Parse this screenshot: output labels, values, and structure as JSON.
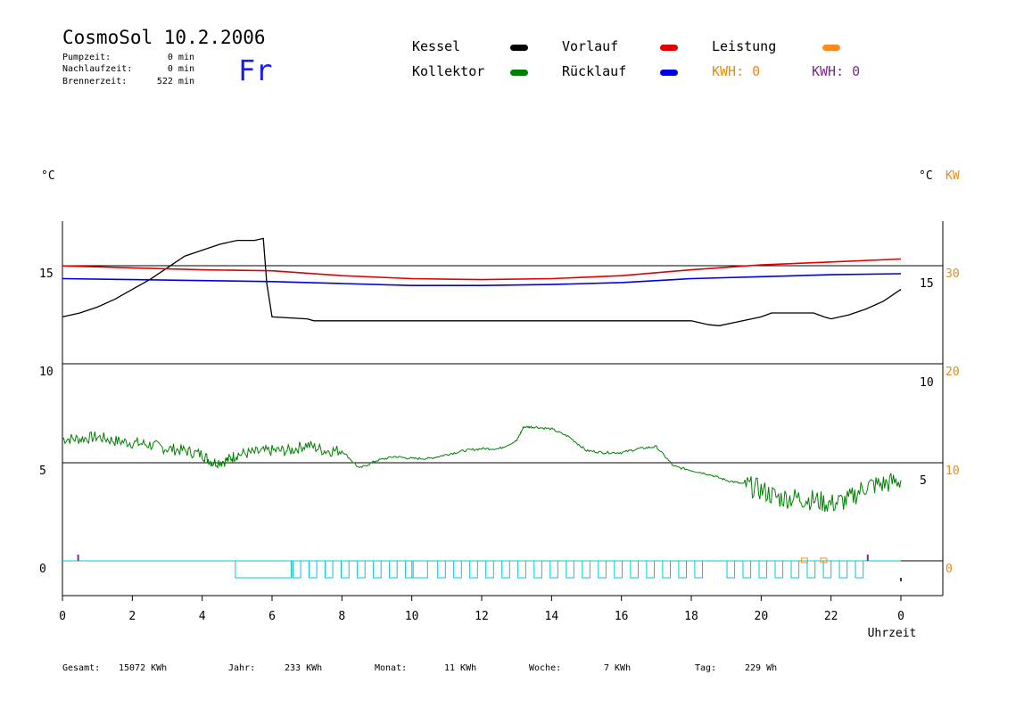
{
  "header": {
    "title": "CosmoSol 10.2.2006",
    "day": "Fr",
    "info": [
      {
        "label": "Pumpzeit:",
        "value": "0 min"
      },
      {
        "label": "Nachlaufzeit:",
        "value": "0 min"
      },
      {
        "label": "Brennerzeit:",
        "value": "522 min"
      }
    ]
  },
  "legend": {
    "kessel": {
      "label": "Kessel",
      "color": "#000000"
    },
    "vorlauf": {
      "label": "Vorlauf",
      "color": "#e00000"
    },
    "leistung": {
      "label": "Leistung",
      "color": "#ff8c1a"
    },
    "kollektor": {
      "label": "Kollektor",
      "color": "#008000"
    },
    "ruecklauf": {
      "label": "Rücklauf",
      "color": "#0000e0"
    },
    "kwh1": "KWH: 0",
    "kwh2": "KWH: 0"
  },
  "footer": {
    "gesamt_label": "Gesamt:",
    "gesamt_value": "15072 KWh",
    "jahr_label": "Jahr:",
    "jahr_value": "233 KWh",
    "monat_label": "Monat:",
    "monat_value": "11 KWh",
    "woche_label": "Woche:",
    "woche_value": "7 KWh",
    "tag_label": "Tag:",
    "tag_value": "229 Wh"
  },
  "chart_data": [
    {
      "type": "line",
      "title": "",
      "xlabel": "Uhrzeit",
      "xlim": [
        0,
        24
      ],
      "xticks": [
        "0",
        "2",
        "4",
        "6",
        "8",
        "10",
        "12",
        "14",
        "16",
        "18",
        "20",
        "22",
        "0"
      ],
      "upper": {
        "ylabel": "°C",
        "ylim": [
          11.5,
          17
        ],
        "yticks_left": [
          "15"
        ],
        "yticks_right": [
          "15"
        ],
        "series": [
          {
            "name": "Kessel",
            "color": "#000000",
            "x": [
              0,
              0.5,
              1,
              1.5,
              2,
              2.5,
              3,
              3.5,
              4,
              4.5,
              5,
              5.5,
              5.75,
              5.85,
              6,
              7,
              7.2,
              8,
              10,
              12,
              14,
              16,
              18,
              18.5,
              18.8,
              19.2,
              20,
              20.3,
              21,
              21.5,
              21.8,
              22,
              22.5,
              23,
              23.5,
              24
            ],
            "y": [
              12.8,
              13.0,
              13.3,
              13.7,
              14.2,
              14.7,
              15.3,
              15.9,
              16.2,
              16.5,
              16.7,
              16.7,
              16.8,
              14.5,
              12.8,
              12.7,
              12.6,
              12.6,
              12.6,
              12.6,
              12.6,
              12.6,
              12.6,
              12.4,
              12.35,
              12.5,
              12.8,
              13.0,
              13.0,
              13.0,
              12.8,
              12.7,
              12.9,
              13.2,
              13.6,
              14.2
            ]
          },
          {
            "name": "Vorlauf",
            "color": "#e00000",
            "x": [
              0,
              2,
              4,
              6,
              8,
              10,
              12,
              14,
              16,
              18,
              20,
              22,
              24
            ],
            "y": [
              15.4,
              15.3,
              15.2,
              15.15,
              14.9,
              14.75,
              14.7,
              14.75,
              14.9,
              15.2,
              15.45,
              15.6,
              15.75
            ]
          },
          {
            "name": "Rücklauf",
            "color": "#0000e0",
            "x": [
              0,
              2,
              4,
              6,
              8,
              10,
              12,
              14,
              16,
              18,
              20,
              22,
              24
            ],
            "y": [
              14.75,
              14.7,
              14.65,
              14.6,
              14.5,
              14.4,
              14.4,
              14.45,
              14.55,
              14.75,
              14.85,
              14.95,
              15.0
            ]
          }
        ]
      },
      "lower": {
        "ylabel": "°C KW",
        "ylim": [
          -1.5,
          10
        ],
        "yticks_left": [
          "10",
          "5",
          "0"
        ],
        "yticks_right": [
          "10",
          "5"
        ],
        "yticks_right2": [
          "30",
          "20",
          "10",
          "0"
        ],
        "series": [
          {
            "name": "Kollektor",
            "color": "#008000",
            "x": [
              0,
              0.5,
              1,
              1.5,
              2,
              2.5,
              3,
              3.5,
              4,
              4.3,
              4.7,
              5,
              5.5,
              6,
              6.5,
              7,
              7.5,
              8,
              8.5,
              9,
              9.5,
              10,
              10.5,
              11,
              11.5,
              12,
              12.5,
              13,
              13.2,
              13.5,
              14,
              14.5,
              15,
              15.5,
              16,
              16.5,
              17,
              17.5,
              18,
              18.5,
              19,
              19.5,
              20,
              20.5,
              21,
              21.5,
              22,
              22.5,
              23,
              23.5,
              24
            ],
            "y": [
              6.6,
              6.6,
              6.7,
              6.5,
              6.4,
              6.3,
              6.1,
              6.0,
              5.8,
              5.4,
              5.5,
              5.8,
              5.9,
              6.0,
              6.0,
              6.3,
              6.0,
              6.0,
              5.1,
              5.5,
              5.7,
              5.6,
              5.6,
              5.8,
              6.0,
              6.1,
              6.1,
              6.5,
              7.2,
              7.2,
              7.1,
              6.7,
              6.0,
              5.9,
              5.9,
              6.1,
              6.2,
              5.2,
              5.0,
              4.8,
              4.5,
              4.3,
              4.0,
              3.6,
              3.6,
              3.5,
              3.3,
              3.5,
              4.2,
              4.3,
              4.5
            ]
          }
        ]
      }
    }
  ]
}
